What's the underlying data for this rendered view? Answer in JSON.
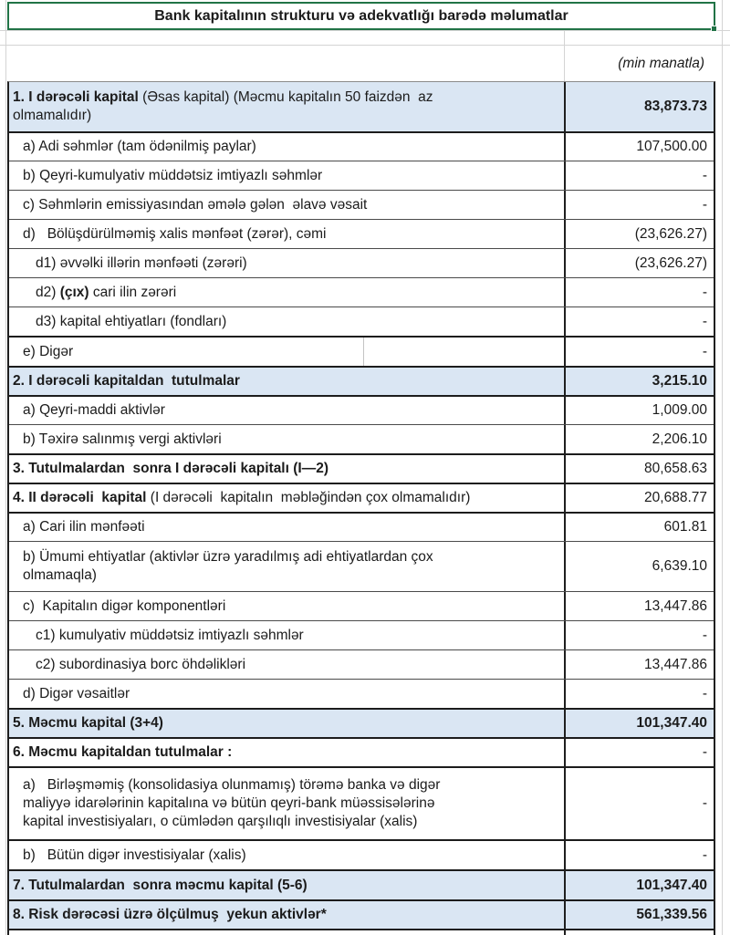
{
  "meta": {
    "title": "Bank kapitalının strukturu və adekvatlığı barədə məlumatlar",
    "unit_note": "(min manatla)"
  },
  "colors": {
    "highlight_row_bg": "#dae6f3",
    "selection_border_green": "#217346",
    "table_border_dark": "#1f1f1f",
    "gridline_gray": "#d4d4d4"
  },
  "table": {
    "rows": [
      {
        "id": "s1",
        "highlight": true,
        "thick_top": false,
        "indent": 0,
        "value_bold": true,
        "label": [
          {
            "t": "1. I dərəcəli kapital ",
            "b": true
          },
          {
            "t": "(Əsas kapital) (Məcmu kapitalın 50 faizdən  az\nolmamalıdır)",
            "b": false
          }
        ],
        "value": "83,873.73"
      },
      {
        "id": "a1",
        "thick_top": true,
        "indent": 1,
        "label": [
          {
            "t": "a) Adi səhmlər (tam ödənilmiş paylar)"
          }
        ],
        "value": "107,500.00"
      },
      {
        "id": "b1",
        "indent": 1,
        "label": [
          {
            "t": "b) Qeyri-kumulyativ müddətsiz imtiyazlı səhmlər"
          }
        ],
        "value": "-"
      },
      {
        "id": "c1",
        "indent": 1,
        "label": [
          {
            "t": "c) Səhmlərin emissiyasından əmələ gələn  əlavə vəsait"
          }
        ],
        "value": "-"
      },
      {
        "id": "d1",
        "indent": 1,
        "label": [
          {
            "t": "d)   Bölüşdürülməmiş xalis mənfəət (zərər), cəmi"
          }
        ],
        "value": "(23,626.27)"
      },
      {
        "id": "d1s",
        "indent": 2,
        "label": [
          {
            "t": "d1) əvvəlki illərin mənfəəti (zərəri)"
          }
        ],
        "value": "(23,626.27)"
      },
      {
        "id": "d2s",
        "indent": 2,
        "label": [
          {
            "t": "d2) "
          },
          {
            "t": "(çıx)",
            "b": true
          },
          {
            "t": " cari ilin zərəri"
          }
        ],
        "value": "-"
      },
      {
        "id": "d3s",
        "indent": 2,
        "label": [
          {
            "t": "d3) kapital ehtiyatları (fondları)"
          }
        ],
        "value": "-"
      },
      {
        "id": "e1",
        "thick_top": true,
        "indent": 1,
        "mid_gridline": true,
        "label": [
          {
            "t": "e) Digər"
          }
        ],
        "value": "-"
      },
      {
        "id": "s2",
        "highlight": true,
        "thick_top": true,
        "indent": 0,
        "value_bold": true,
        "label": [
          {
            "t": "2. I dərəcəli kapitaldan  tutulmalar",
            "b": true
          }
        ],
        "value": "3,215.10"
      },
      {
        "id": "a2",
        "thick_top": true,
        "indent": 1,
        "label": [
          {
            "t": "a) Qeyri-maddi aktivlər"
          }
        ],
        "value": "1,009.00"
      },
      {
        "id": "b2",
        "indent": 1,
        "label": [
          {
            "t": "b) Təxirə salınmış vergi aktivləri"
          }
        ],
        "value": "2,206.10"
      },
      {
        "id": "s3",
        "thick_top": true,
        "indent": 0,
        "label": [
          {
            "t": "3. Tutulmalardan  sonra I dərəcəli kapitalı (I—2)",
            "b": true
          }
        ],
        "value": "80,658.63"
      },
      {
        "id": "s4",
        "thick_top": true,
        "indent": 0,
        "label": [
          {
            "t": "4. II dərəcəli  kapital ",
            "b": true
          },
          {
            "t": "(I dərəcəli  kapitalın  məbləğindən çox olmamalıdır)",
            "b": false
          }
        ],
        "value": "20,688.77"
      },
      {
        "id": "a4",
        "thick_top": true,
        "indent": 1,
        "label": [
          {
            "t": "a) Cari ilin mənfəəti"
          }
        ],
        "value": "601.81"
      },
      {
        "id": "b4",
        "indent": 1,
        "label": [
          {
            "t": "b) Ümumi ehtiyatlar (aktivlər üzrə yaradılmış adi ehtiyatlardan çox\nolmamaqla)"
          }
        ],
        "value": "6,639.10"
      },
      {
        "id": "c4",
        "indent": 1,
        "label": [
          {
            "t": "c)  Kapitalın digər komponentləri"
          }
        ],
        "value": "13,447.86"
      },
      {
        "id": "c1s",
        "indent": 2,
        "label": [
          {
            "t": "c1) kumulyativ müddətsiz imtiyazlı səhmlər"
          }
        ],
        "value": "-"
      },
      {
        "id": "c2s",
        "indent": 2,
        "label": [
          {
            "t": "c2) subordinasiya borc öhdəlikləri"
          }
        ],
        "value": "13,447.86"
      },
      {
        "id": "d4",
        "indent": 1,
        "label": [
          {
            "t": "d) Digər vəsaitlər"
          }
        ],
        "value": "-"
      },
      {
        "id": "s5",
        "highlight": true,
        "thick_top": true,
        "indent": 0,
        "value_bold": true,
        "label": [
          {
            "t": "5. Məcmu kapital (3+4)",
            "b": true
          }
        ],
        "value": "101,347.40"
      },
      {
        "id": "s6",
        "thick_top": true,
        "indent": 0,
        "label": [
          {
            "t": "6. Məcmu kapitaldan tutulmalar :",
            "b": true
          }
        ],
        "value": "-"
      },
      {
        "id": "a6",
        "thick_top": true,
        "indent": 1,
        "label": [
          {
            "t": "a)   Birləşməmiş (konsolidasiya olunmamış) törəmə banka və digər\nmaliyyə idarələrinin kapitalına və bütün qeyri-bank müəssisələrinə\nkapital investisiyaları, o cümlədən qarşılıqlı investisiyalar (xalis)"
          }
        ],
        "value": "-"
      },
      {
        "id": "b6",
        "thick_top": true,
        "indent": 1,
        "label": [
          {
            "t": "b)   Bütün digər investisiyalar (xalis)"
          }
        ],
        "value": "-"
      },
      {
        "id": "s7",
        "highlight": true,
        "thick_top": true,
        "indent": 0,
        "value_bold": true,
        "label": [
          {
            "t": "7. Tutulmalardan  sonra məcmu kapital (5-6)",
            "b": true
          }
        ],
        "value": "101,347.40"
      },
      {
        "id": "s8",
        "highlight": true,
        "thick_top": true,
        "indent": 0,
        "value_bold": true,
        "label": [
          {
            "t": "8. Risk dərəcəsi üzrə ölçülmuş  yekun aktivlər*",
            "b": true
          }
        ],
        "value": "561,339.56"
      }
    ]
  }
}
